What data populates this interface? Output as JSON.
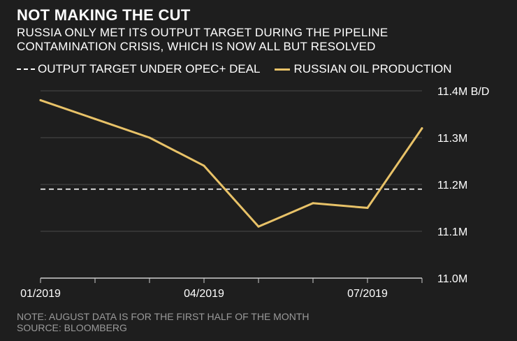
{
  "colors": {
    "background": "#1e1e1e",
    "line": "#e8c268",
    "target": "#ffffff",
    "grid": "#4a4a4a",
    "note": "#9a9a9a"
  },
  "header": {
    "title": "NOT MAKING THE CUT",
    "subtitle_line1": "RUSSIA ONLY MET ITS OUTPUT TARGET DURING THE PIPELINE",
    "subtitle_line2": "CONTAMINATION CRISIS, WHICH IS NOW ALL BUT RESOLVED"
  },
  "legend": {
    "target_label": "OUTPUT TARGET UNDER OPEC+ DEAL",
    "production_label": "RUSSIAN OIL PRODUCTION"
  },
  "footer": {
    "note": "NOTE: AUGUST DATA IS FOR THE FIRST HALF OF THE MONTH",
    "source": "SOURCE: BLOOMBERG"
  },
  "chart_data": {
    "type": "line",
    "title": "NOT MAKING THE CUT",
    "x": [
      "01/2019",
      "02/2019",
      "03/2019",
      "04/2019",
      "05/2019",
      "06/2019",
      "07/2019",
      "08/2019"
    ],
    "series": [
      {
        "name": "RUSSIAN OIL PRODUCTION",
        "values": [
          11.38,
          11.34,
          11.3,
          11.24,
          11.11,
          11.16,
          11.15,
          11.32
        ]
      },
      {
        "name": "OUTPUT TARGET UNDER OPEC+ DEAL",
        "values": [
          11.19,
          11.19,
          11.19,
          11.19,
          11.19,
          11.19,
          11.19,
          11.19
        ],
        "style": "dashed"
      }
    ],
    "ylim": [
      11.0,
      11.4
    ],
    "yticks": [
      11.0,
      11.1,
      11.2,
      11.3,
      11.4
    ],
    "ytick_labels": [
      "11.0M",
      "11.1M",
      "11.2M",
      "11.3M",
      "11.4M B/D"
    ],
    "xtick_labels": [
      "01/2019",
      "04/2019",
      "07/2019"
    ],
    "xtick_indices": [
      0,
      3,
      6
    ],
    "grid": true,
    "legend_position": "top-left"
  }
}
